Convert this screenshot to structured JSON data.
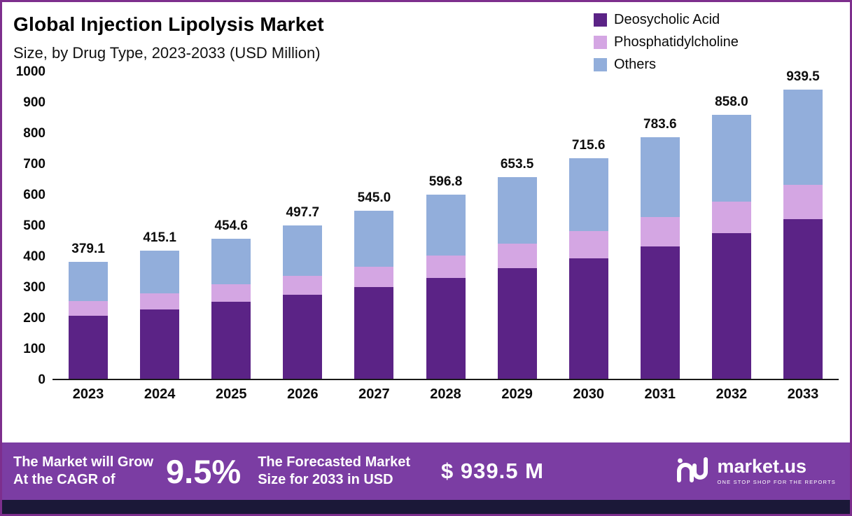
{
  "header": {
    "title": "Global Injection Lipolysis Market",
    "subtitle": "Size, by Drug Type, 2023-2033 (USD Million)"
  },
  "legend": [
    {
      "label": "Deosycholic Acid",
      "color": "#5b2386"
    },
    {
      "label": "Phosphatidylcholine",
      "color": "#d4a6e3"
    },
    {
      "label": "Others",
      "color": "#92aedb"
    }
  ],
  "chart_data": {
    "type": "bar",
    "stacked": true,
    "title": "Global Injection Lipolysis Market Size, by Drug Type, 2023-2033 (USD Million)",
    "categories": [
      "2023",
      "2024",
      "2025",
      "2026",
      "2027",
      "2028",
      "2029",
      "2030",
      "2031",
      "2032",
      "2033"
    ],
    "series": [
      {
        "name": "Deosycholic Acid",
        "color": "#5b2386",
        "values": [
          205,
          225,
          250,
          272,
          297,
          327,
          358,
          392,
          430,
          472,
          518
        ]
      },
      {
        "name": "Phosphatidylcholine",
        "color": "#d4a6e3",
        "values": [
          48,
          53,
          57,
          62,
          67,
          74,
          80,
          88,
          96,
          103,
          112
        ]
      },
      {
        "name": "Others",
        "color": "#92aedb",
        "values": [
          126.1,
          137.1,
          147.6,
          163.7,
          181.0,
          195.8,
          215.5,
          235.6,
          257.6,
          283.0,
          309.5
        ]
      }
    ],
    "totals": [
      379.1,
      415.1,
      454.6,
      497.7,
      545.0,
      596.8,
      653.5,
      715.6,
      783.6,
      858.0,
      939.5
    ],
    "total_labels": [
      "379.1",
      "415.1",
      "454.6",
      "497.7",
      "545.0",
      "596.8",
      "653.5",
      "715.6",
      "783.6",
      "858.0",
      "939.5"
    ],
    "ylim": [
      0,
      1000
    ],
    "yticks": [
      0,
      100,
      200,
      300,
      400,
      500,
      600,
      700,
      800,
      900,
      1000
    ],
    "grid": false,
    "legend_position": "top-right"
  },
  "footer": {
    "left_line1": "The Market will Grow",
    "left_line2": "At the CAGR of",
    "cagr": "9.5%",
    "mid_line1": "The Forecasted Market",
    "mid_line2": "Size for 2033 in USD",
    "amount": "$ 939.5 M",
    "brand": "market.us",
    "brand_tagline": "ONE STOP SHOP FOR THE REPORTS"
  },
  "colors": {
    "border": "#7d2e8d",
    "banner": "#7b3da3",
    "bottom_strip": "#1b1838",
    "axis": "#1a1a1a"
  }
}
